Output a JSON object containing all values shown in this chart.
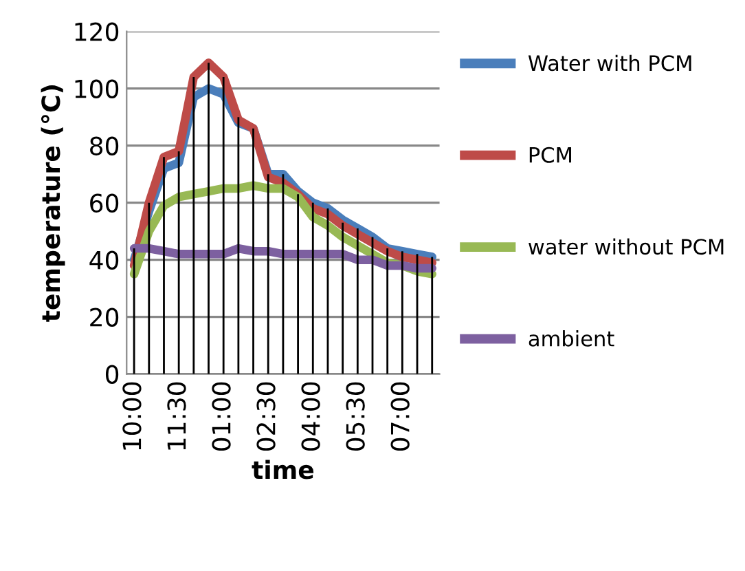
{
  "chart_data": {
    "type": "line",
    "xlabel": "time",
    "ylabel": "temperature (°C)",
    "categories": [
      "10:00",
      null,
      null,
      "11:30",
      null,
      null,
      "01:00",
      null,
      null,
      "02:30",
      null,
      null,
      "04:00",
      null,
      null,
      "05:30",
      null,
      null,
      "07:00",
      null,
      null
    ],
    "series": [
      {
        "type": "bar",
        "color": "#000000",
        "values": [
          44,
          60,
          76,
          78,
          104,
          109,
          104,
          90,
          86,
          70,
          70,
          63,
          60,
          58,
          53,
          51,
          48,
          44,
          43,
          42,
          41
        ]
      },
      {
        "name": "Water with PCM",
        "color": "#4a7ebb",
        "values": [
          40,
          57,
          72,
          74,
          97,
          100,
          98,
          88,
          86,
          70,
          70,
          64,
          60,
          58,
          54,
          51,
          48,
          44,
          43,
          42,
          41
        ]
      },
      {
        "name": "PCM",
        "color": "#be4b48",
        "values": [
          38,
          60,
          76,
          78,
          104,
          109,
          104,
          89,
          86,
          69,
          67,
          63,
          58,
          56,
          52,
          49,
          46,
          43,
          41,
          40,
          39
        ]
      },
      {
        "name": "water without PCM",
        "color": "#98b954",
        "values": [
          35,
          50,
          59,
          62,
          63,
          64,
          65,
          65,
          66,
          65,
          65,
          62,
          55,
          52,
          48,
          45,
          42,
          39,
          38,
          36,
          35
        ]
      },
      {
        "name": "ambient",
        "color": "#7d60a0",
        "values": [
          44,
          44,
          43,
          42,
          42,
          42,
          42,
          44,
          43,
          43,
          42,
          42,
          42,
          42,
          42,
          40,
          40,
          38,
          38,
          37,
          37
        ]
      }
    ],
    "ylim": [
      0,
      120
    ],
    "yticks": [
      0,
      20,
      40,
      60,
      80,
      100,
      120
    ],
    "grid": "y",
    "legend": "right",
    "marker": "none",
    "line_style": "solid"
  }
}
